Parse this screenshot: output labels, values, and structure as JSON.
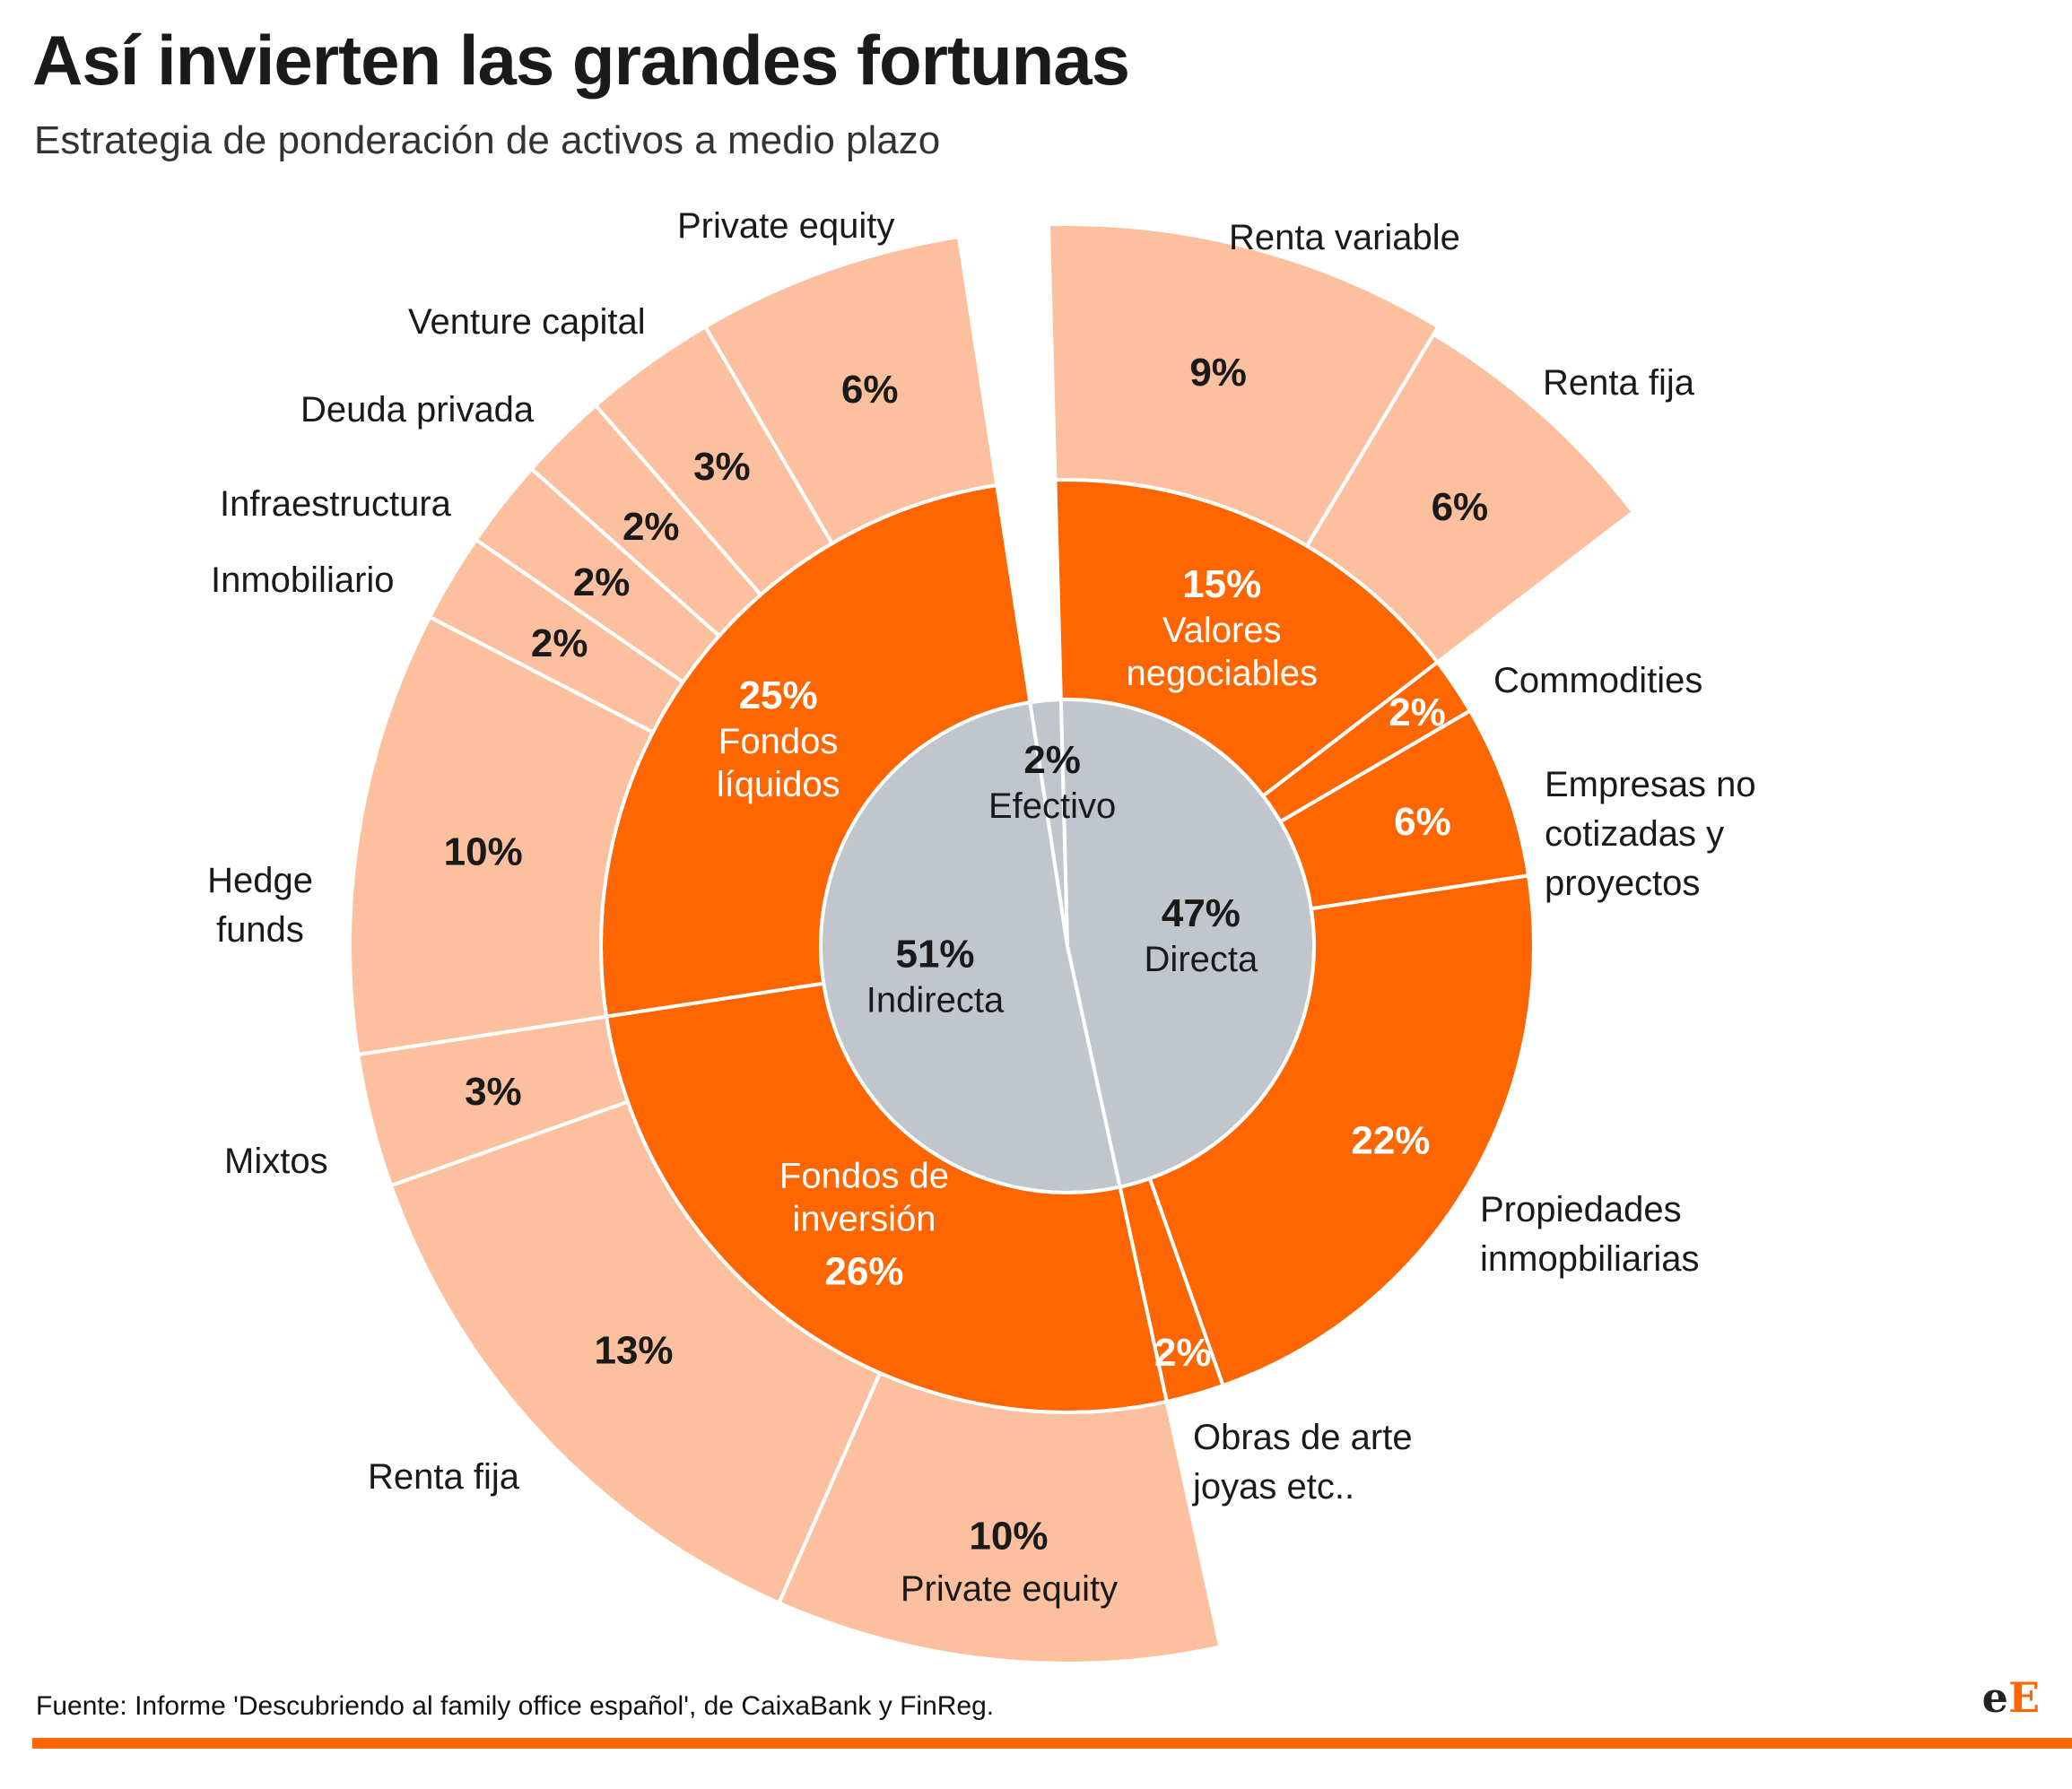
{
  "title": "Así invierten las grandes fortunas",
  "subtitle": "Estrategia de ponderación de activos a medio plazo",
  "source": "Fuente: Informe 'Descubriendo al family office español', de CaixaBank y FinReg.",
  "logo": {
    "part1": "e",
    "part2": "E"
  },
  "colors": {
    "inner": "#c1c5cc",
    "middle": "#ff6600",
    "outer": "#fcc09e",
    "accent": "#ff6600"
  },
  "chart_data": {
    "type": "sunburst",
    "inner": [
      {
        "name": "Directa",
        "value": 47,
        "label": "47%"
      },
      {
        "name": "Indirecta",
        "value": 51,
        "label": "51%"
      },
      {
        "name": "Efectivo",
        "value": 2,
        "label": "2%"
      }
    ],
    "middle": [
      {
        "name": "Valores negociables",
        "value": 15,
        "label": "15%"
      },
      {
        "name": "Commodities",
        "value": 2,
        "label": "2%"
      },
      {
        "name": "Empresas no cotizadas y proyectos",
        "value": 6,
        "label": "6%"
      },
      {
        "name": "Propiedades inmopbiliarias",
        "value": 22,
        "label": "22%"
      },
      {
        "name": "Obras de arte joyas etc..",
        "value": 2,
        "label": "2%"
      },
      {
        "name": "Fondos de inversión",
        "value": 26,
        "label": "26%"
      },
      {
        "name": "Fondos líquidos",
        "value": 25,
        "label": "25%"
      }
    ],
    "outer": [
      {
        "name": "Renta variable",
        "value": 9,
        "label": "9%"
      },
      {
        "name": "Renta fija",
        "value": 6,
        "label": "6%"
      },
      {
        "name": "Private equity",
        "value": 10,
        "label": "10%"
      },
      {
        "name": "Renta fija",
        "value": 13,
        "label": "13%"
      },
      {
        "name": "Mixtos",
        "value": 3,
        "label": "3%"
      },
      {
        "name": "Hedge funds",
        "value": 10,
        "label": "10%"
      },
      {
        "name": "Inmobiliario",
        "value": 2,
        "label": "2%"
      },
      {
        "name": "Infraestructura",
        "value": 2,
        "label": "2%"
      },
      {
        "name": "Deuda privada",
        "value": 2,
        "label": "2%"
      },
      {
        "name": "Venture capital",
        "value": 3,
        "label": "3%"
      },
      {
        "name": "Private equity",
        "value": 6,
        "label": "6%"
      }
    ]
  }
}
